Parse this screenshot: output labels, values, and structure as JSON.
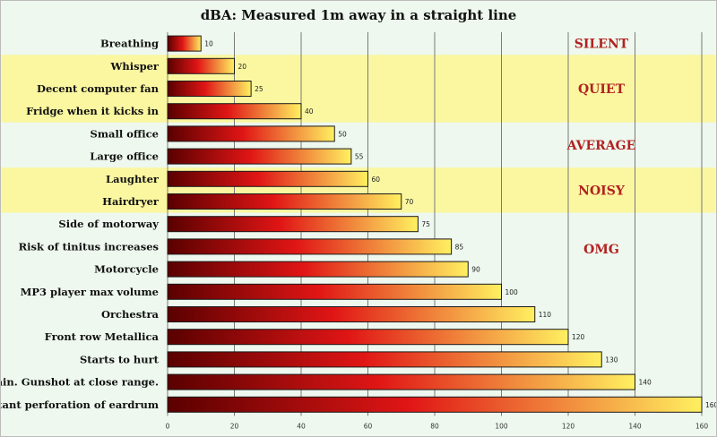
{
  "chart_data": {
    "type": "bar",
    "orientation": "horizontal",
    "title": "dBA: Measured 1m away in a straight line",
    "categories": [
      "Breathing",
      "Whisper",
      "Decent computer fan",
      "Fridge when it kicks in",
      "Small office",
      "Large office",
      "Laughter",
      "Hairdryer",
      "Side of motorway",
      "Risk of tinitus increases",
      "Motorcycle",
      "MP3 player max volume",
      "Orchestra",
      "Front row Metallica",
      "Starts to hurt",
      "Pain. Gunshot at close range.",
      "Instant perforation of eardrum"
    ],
    "values": [
      10,
      20,
      25,
      40,
      50,
      55,
      60,
      70,
      75,
      85,
      90,
      100,
      110,
      120,
      130,
      140,
      160
    ],
    "xlim": [
      0,
      160
    ],
    "xticks": [
      "0",
      "20",
      "40",
      "60",
      "80",
      "100",
      "120",
      "140",
      "160"
    ],
    "grid": true,
    "bands": [
      {
        "label": "SILENT",
        "from_index": 0,
        "to_index": 0,
        "color": "#eef8ee"
      },
      {
        "label": "QUIET",
        "from_index": 1,
        "to_index": 3,
        "color": "#fbf7a0"
      },
      {
        "label": "AVERAGE",
        "from_index": 4,
        "to_index": 5,
        "color": "#eef8ee"
      },
      {
        "label": "NOISY",
        "from_index": 6,
        "to_index": 7,
        "color": "#fbf7a0"
      },
      {
        "label": "OMG",
        "from_index": 8,
        "to_index": 16,
        "color": "#eef8ee"
      }
    ],
    "colors": {
      "bar_start": "#5a0000",
      "bar_mid": "#e01515",
      "bar_end": "#fff060",
      "zone_label": "#b22222"
    }
  }
}
